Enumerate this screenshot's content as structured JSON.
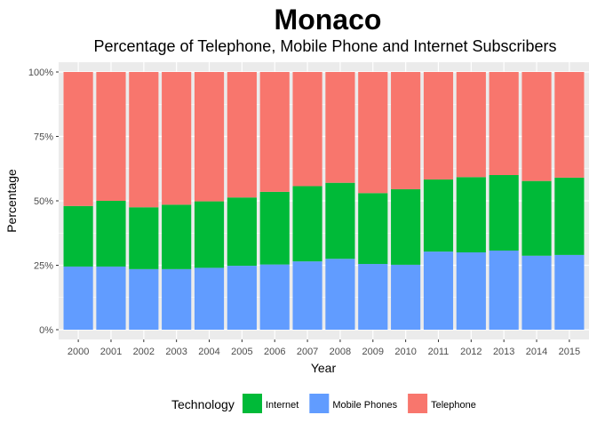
{
  "chart_data": {
    "type": "bar",
    "stacked": true,
    "title": "Monaco",
    "subtitle": "Percentage of Telephone, Mobile Phone and Internet Subscribers",
    "xlabel": "Year",
    "ylabel": "Percentage",
    "ylim": [
      0,
      1
    ],
    "yticks": [
      0,
      0.25,
      0.5,
      0.75,
      1
    ],
    "ytick_labels": [
      "0%",
      "25%",
      "50%",
      "75%",
      "100%"
    ],
    "grid": true,
    "legend_position": "bottom",
    "legend_title": "Technology",
    "categories": [
      "2000",
      "2001",
      "2002",
      "2003",
      "2004",
      "2005",
      "2006",
      "2007",
      "2008",
      "2009",
      "2010",
      "2011",
      "2012",
      "2013",
      "2014",
      "2015"
    ],
    "series": [
      {
        "name": "Mobile Phones",
        "color": "#619CFF",
        "values": [
          0.245,
          0.245,
          0.235,
          0.235,
          0.24,
          0.248,
          0.253,
          0.265,
          0.275,
          0.255,
          0.252,
          0.303,
          0.3,
          0.307,
          0.287,
          0.29
        ]
      },
      {
        "name": "Internet",
        "color": "#00BA38",
        "values": [
          0.235,
          0.255,
          0.24,
          0.25,
          0.258,
          0.265,
          0.282,
          0.292,
          0.295,
          0.275,
          0.293,
          0.28,
          0.292,
          0.293,
          0.29,
          0.3
        ]
      },
      {
        "name": "Telephone",
        "color": "#F8766D",
        "values": [
          0.52,
          0.5,
          0.525,
          0.515,
          0.502,
          0.487,
          0.465,
          0.443,
          0.43,
          0.47,
          0.455,
          0.417,
          0.408,
          0.4,
          0.423,
          0.41
        ]
      }
    ],
    "legend_order": [
      "Internet",
      "Mobile Phones",
      "Telephone"
    ]
  }
}
